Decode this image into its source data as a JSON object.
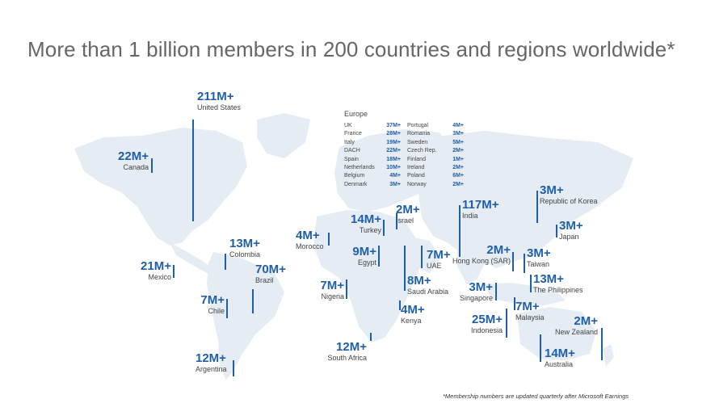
{
  "title": "More than 1 billion members in 200 countries and regions worldwide*",
  "footnote": "*Membership numbers are updated quarterly after Microsoft Earnings",
  "colors": {
    "accent": "#1f5ea8",
    "land": "#e6ecf3",
    "text": "#444444"
  },
  "regions": {
    "united_states": {
      "value": "211M+",
      "name": "United States"
    },
    "canada": {
      "value": "22M+",
      "name": "Canada"
    },
    "mexico": {
      "value": "21M+",
      "name": "Mexico"
    },
    "colombia": {
      "value": "13M+",
      "name": "Colombia"
    },
    "brazil": {
      "value": "70M+",
      "name": "Brazil"
    },
    "chile": {
      "value": "7M+",
      "name": "Chile"
    },
    "argentina": {
      "value": "12M+",
      "name": "Argentina"
    },
    "morocco": {
      "value": "4M+",
      "name": "Morocco"
    },
    "turkey": {
      "value": "14M+",
      "name": "Turkey"
    },
    "israel": {
      "value": "2M+",
      "name": "Israel"
    },
    "egypt": {
      "value": "9M+",
      "name": "Egypt"
    },
    "nigeria": {
      "value": "7M+",
      "name": "Nigeria"
    },
    "uae": {
      "value": "7M+",
      "name": "UAE"
    },
    "saudi_arabia": {
      "value": "8M+",
      "name": "Saudi Arabia"
    },
    "kenya": {
      "value": "4M+",
      "name": "Kenya"
    },
    "south_africa": {
      "value": "12M+",
      "name": "South Africa"
    },
    "india": {
      "value": "117M+",
      "name": "India"
    },
    "hong_kong": {
      "value": "2M+",
      "name": "Hong Kong (SAR)"
    },
    "singapore": {
      "value": "3M+",
      "name": "Singapore"
    },
    "indonesia": {
      "value": "25M+",
      "name": "Indonesia"
    },
    "malaysia": {
      "value": "7M+",
      "name": "Malaysia"
    },
    "republic_of_korea": {
      "value": "3M+",
      "name": "Republic of Korea"
    },
    "japan": {
      "value": "3M+",
      "name": "Japan"
    },
    "taiwan": {
      "value": "3M+",
      "name": "Taiwan"
    },
    "philippines": {
      "value": "13M+",
      "name": "The Philippines"
    },
    "new_zealand": {
      "value": "2M+",
      "name": "New Zealand"
    },
    "australia": {
      "value": "14M+",
      "name": "Australia"
    }
  },
  "europe": {
    "title": "Europe",
    "left": [
      {
        "name": "UK",
        "value": "37M+"
      },
      {
        "name": "France",
        "value": "28M+"
      },
      {
        "name": "Italy",
        "value": "19M+"
      },
      {
        "name": "DACH",
        "value": "22M+"
      },
      {
        "name": "Spain",
        "value": "18M+"
      },
      {
        "name": "Netherlands",
        "value": "10M+"
      },
      {
        "name": "Belgium",
        "value": "4M+"
      },
      {
        "name": "Denmark",
        "value": "3M+"
      }
    ],
    "right": [
      {
        "name": "Portugal",
        "value": "4M+"
      },
      {
        "name": "Romania",
        "value": "3M+"
      },
      {
        "name": "Sweden",
        "value": "5M+"
      },
      {
        "name": "Czech Rep.",
        "value": "2M+"
      },
      {
        "name": "Finland",
        "value": "1M+"
      },
      {
        "name": "Ireland",
        "value": "2M+"
      },
      {
        "name": "Poland",
        "value": "6M+"
      },
      {
        "name": "Norway",
        "value": "2M+"
      }
    ]
  }
}
